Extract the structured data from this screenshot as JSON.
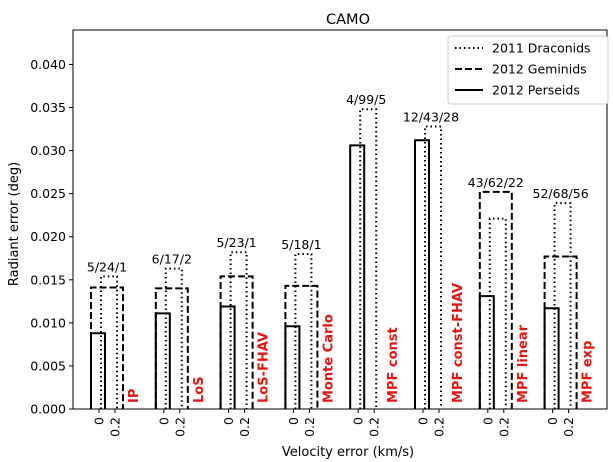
{
  "chart_data": {
    "type": "bar",
    "title": "CAMO",
    "xlabel": "Velocity error (km/s)",
    "ylabel": "Radiant error (deg)",
    "ylim": [
      0,
      0.044
    ],
    "yticks": [
      "0.000",
      "0.005",
      "0.010",
      "0.015",
      "0.020",
      "0.025",
      "0.030",
      "0.035",
      "0.040"
    ],
    "xtick_labels": [
      "0",
      "0.2"
    ],
    "legend_position": "top-right",
    "series": [
      {
        "name": "2011 Draconids",
        "style": "dotted"
      },
      {
        "name": "2012 Geminids",
        "style": "dashed"
      },
      {
        "name": "2012 Perseids",
        "style": "solid"
      }
    ],
    "groups": [
      {
        "method": "IP",
        "annotation": "5/24/1",
        "values_v0": {
          "draconids": 0.0154,
          "geminids": 0.0141,
          "perseids": 0.0088
        },
        "values_v02": {
          "draconids": 0.0141,
          "geminids": 0.0141,
          "perseids": null
        }
      },
      {
        "method": "LoS",
        "annotation": "6/17/2",
        "values_v0": {
          "draconids": 0.0163,
          "geminids": 0.014,
          "perseids": 0.0111
        },
        "values_v02": {
          "draconids": 0.014,
          "geminids": 0.014,
          "perseids": null
        }
      },
      {
        "method": "LoS-FHAV",
        "annotation": "5/23/1",
        "values_v0": {
          "draconids": 0.0182,
          "geminids": 0.0154,
          "perseids": 0.0119
        },
        "values_v02": {
          "draconids": 0.0182,
          "geminids": 0.0154,
          "perseids": null
        }
      },
      {
        "method": "Monte Carlo",
        "annotation": "5/18/1",
        "values_v0": {
          "draconids": 0.018,
          "geminids": 0.0143,
          "perseids": 0.0096
        },
        "values_v02": {
          "draconids": 0.018,
          "geminids": 0.0143,
          "perseids": null
        }
      },
      {
        "method": "MPF const",
        "annotation": "4/99/5",
        "values_v0": {
          "draconids": 0.0348,
          "geminids": null,
          "perseids": 0.0306
        },
        "values_v02": {
          "draconids": 0.0348,
          "geminids": null,
          "perseids": null
        }
      },
      {
        "method": "MPF const-FHAV",
        "annotation": "12/43/28",
        "values_v0": {
          "draconids": 0.0328,
          "geminids": null,
          "perseids": 0.0312
        },
        "values_v02": {
          "draconids": 0.0328,
          "geminids": null,
          "perseids": null
        }
      },
      {
        "method": "MPF linear",
        "annotation": "43/62/22",
        "values_v0": {
          "draconids": 0.0221,
          "geminids": 0.0252,
          "perseids": 0.0131
        },
        "values_v02": {
          "draconids": 0.0221,
          "geminids": 0.0252,
          "perseids": null
        }
      },
      {
        "method": "MPF exp",
        "annotation": "52/68/56",
        "values_v0": {
          "draconids": 0.0239,
          "geminids": 0.0177,
          "perseids": 0.0117
        },
        "values_v02": {
          "draconids": 0.0239,
          "geminids": 0.0177,
          "perseids": null
        }
      }
    ]
  },
  "colors": {
    "method_label": "#e8140f",
    "lines": "#000000"
  }
}
